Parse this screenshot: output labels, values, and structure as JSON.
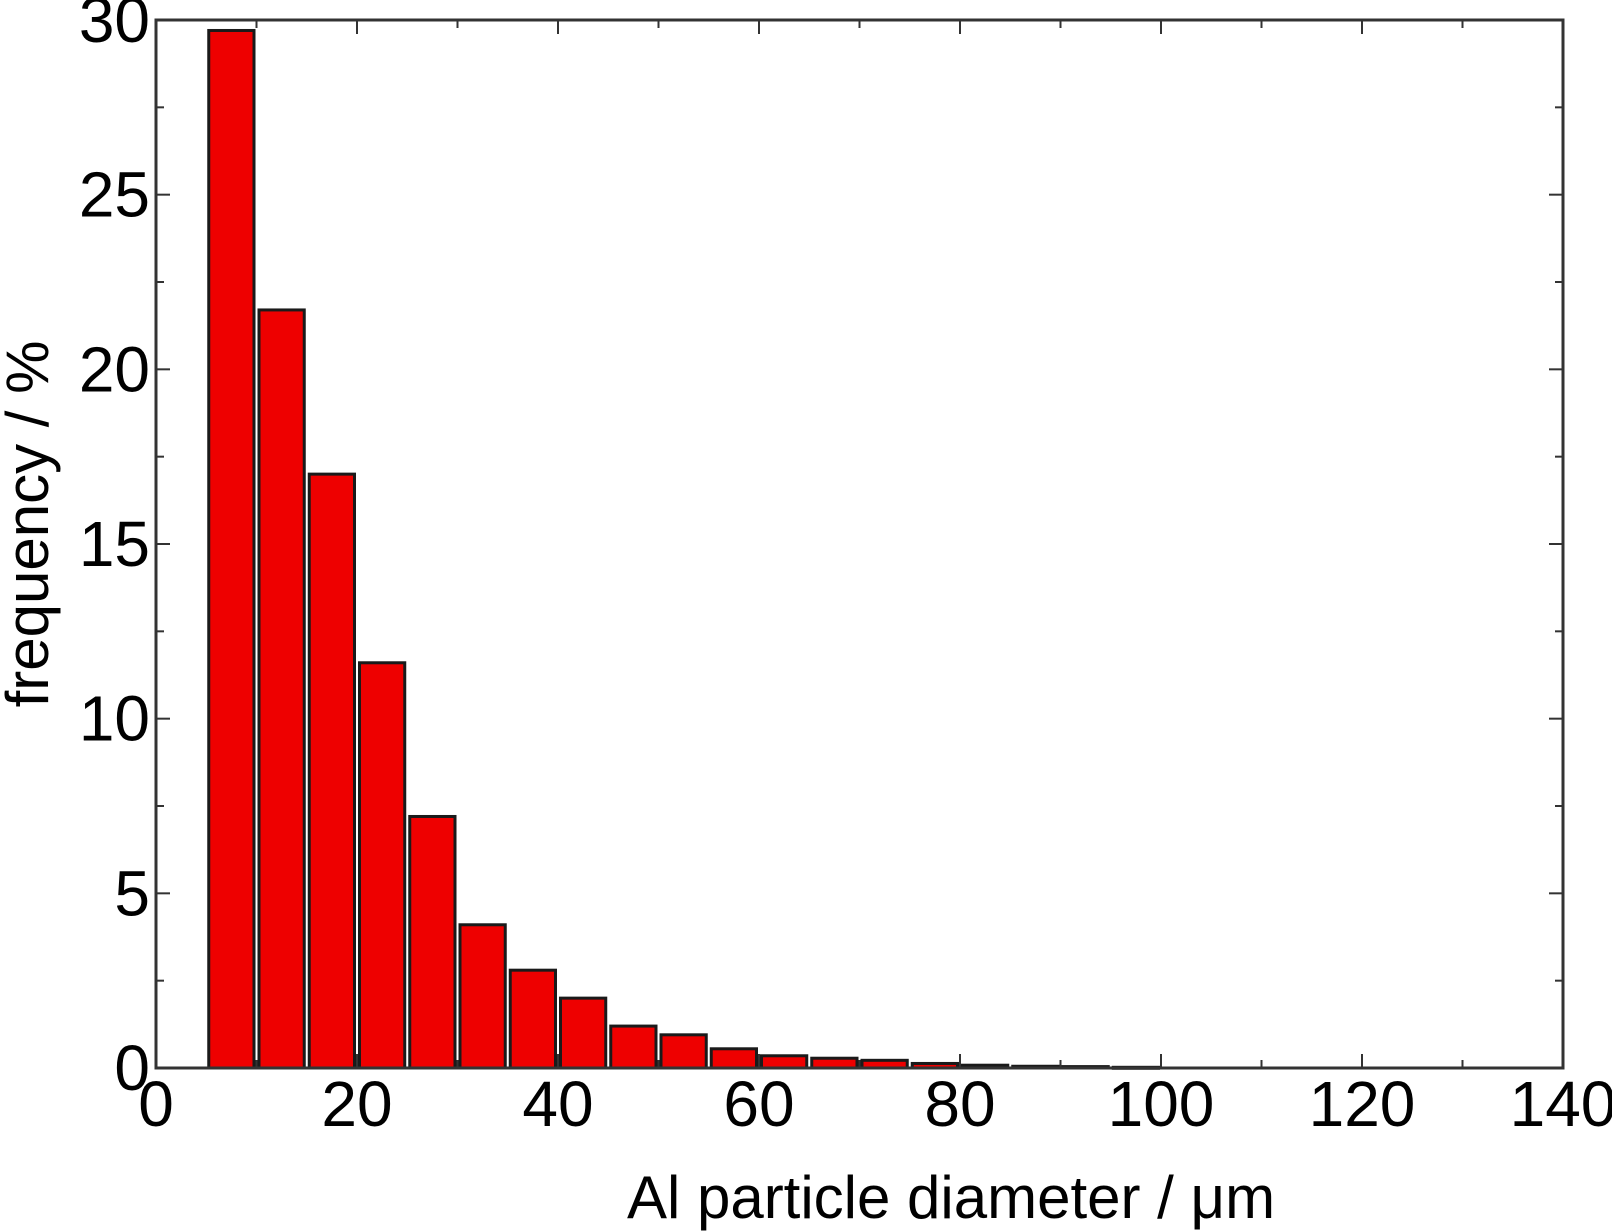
{
  "chart_data": {
    "type": "bar",
    "title": "",
    "xlabel": "Al particle diameter / μm",
    "ylabel": "frequency / %",
    "xlim": [
      0,
      140
    ],
    "ylim": [
      0,
      30
    ],
    "xticks": [
      0,
      20,
      40,
      60,
      80,
      100,
      120,
      140
    ],
    "yticks": [
      0,
      5,
      10,
      15,
      20,
      25,
      30
    ],
    "bin_width": 5,
    "x": [
      7.5,
      12.5,
      17.5,
      22.5,
      27.5,
      32.5,
      37.5,
      42.5,
      47.5,
      52.5,
      57.5,
      62.5,
      67.5,
      72.5,
      77.5,
      82.5,
      87.5,
      92.5,
      97.5
    ],
    "values": [
      29.7,
      21.7,
      17.0,
      11.6,
      7.2,
      4.1,
      2.8,
      2.0,
      1.2,
      0.95,
      0.55,
      0.35,
      0.28,
      0.22,
      0.13,
      0.08,
      0.05,
      0.04,
      0.02
    ],
    "grid": false,
    "colors": {
      "bar_fill": "#ee0000",
      "bar_edge": "#1a1a1a",
      "axis": "#333333"
    }
  }
}
